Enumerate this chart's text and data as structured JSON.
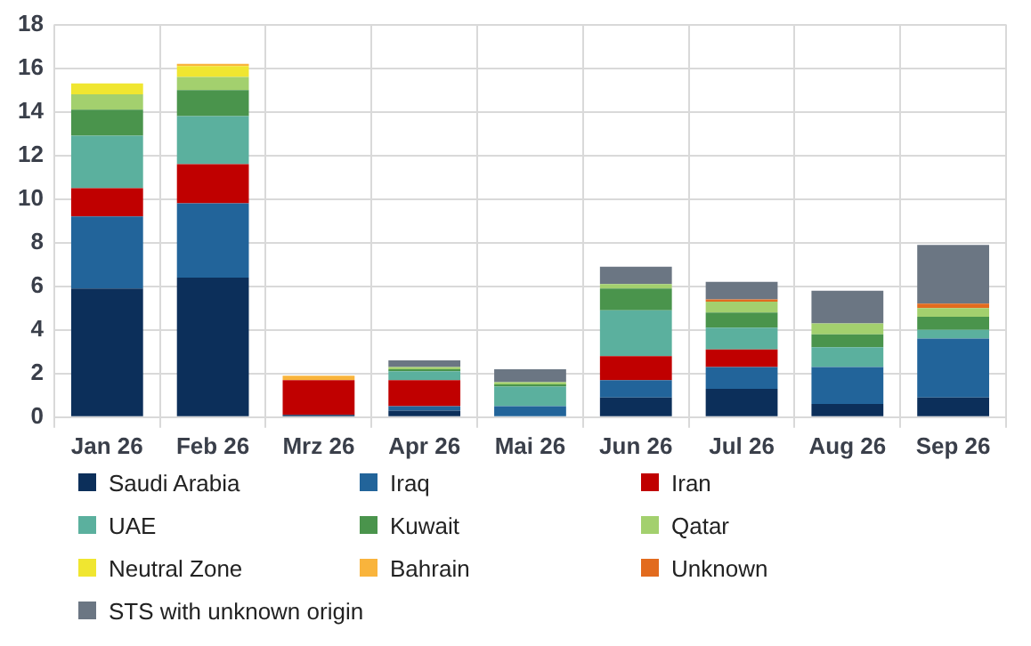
{
  "chart_data": {
    "type": "bar",
    "stacked": true,
    "categories": [
      "Jan 26",
      "Feb 26",
      "Mrz 26",
      "Apr 26",
      "Mai 26",
      "Jun 26",
      "Jul 26",
      "Aug 26",
      "Sep 26"
    ],
    "ylim": [
      0,
      18
    ],
    "yticks": [
      0,
      2,
      4,
      6,
      8,
      10,
      12,
      14,
      16,
      18
    ],
    "grid": true,
    "legend": "bottom",
    "series": [
      {
        "name": "Saudi Arabia",
        "color": "#0c2f5a",
        "values": [
          5.9,
          6.4,
          0.1,
          0.3,
          0,
          0.9,
          1.3,
          0.6,
          0.9
        ]
      },
      {
        "name": "Iraq",
        "color": "#22649a",
        "values": [
          3.3,
          3.4,
          0,
          0.2,
          0.5,
          0.8,
          1.0,
          1.7,
          2.7
        ]
      },
      {
        "name": "Iran",
        "color": "#c00000",
        "values": [
          1.3,
          1.8,
          1.6,
          1.2,
          0,
          1.1,
          0.8,
          0,
          0
        ]
      },
      {
        "name": "UAE",
        "color": "#5bb09e",
        "values": [
          2.4,
          2.2,
          0,
          0.4,
          0.9,
          2.1,
          1.0,
          0.9,
          0.4
        ]
      },
      {
        "name": "Kuwait",
        "color": "#4a944c",
        "values": [
          1.2,
          1.2,
          0,
          0.1,
          0.1,
          1.0,
          0.7,
          0.6,
          0.6
        ]
      },
      {
        "name": "Qatar",
        "color": "#a3d06e",
        "values": [
          0.7,
          0.6,
          0,
          0.1,
          0.1,
          0.2,
          0.5,
          0.5,
          0.4
        ]
      },
      {
        "name": "Neutral Zone",
        "color": "#f0e630",
        "values": [
          0.5,
          0.5,
          0,
          0,
          0,
          0,
          0,
          0,
          0
        ]
      },
      {
        "name": "Bahrain",
        "color": "#f9b43c",
        "values": [
          0,
          0.1,
          0.2,
          0,
          0,
          0,
          0,
          0,
          0
        ]
      },
      {
        "name": "Unknown",
        "color": "#e26b1e",
        "values": [
          0,
          0,
          0,
          0,
          0,
          0,
          0.1,
          0,
          0.2
        ]
      },
      {
        "name": "STS with unknown origin",
        "color": "#6b7683",
        "values": [
          0,
          0,
          0,
          0.3,
          0.6,
          0.8,
          0.8,
          1.5,
          2.7
        ]
      }
    ]
  }
}
